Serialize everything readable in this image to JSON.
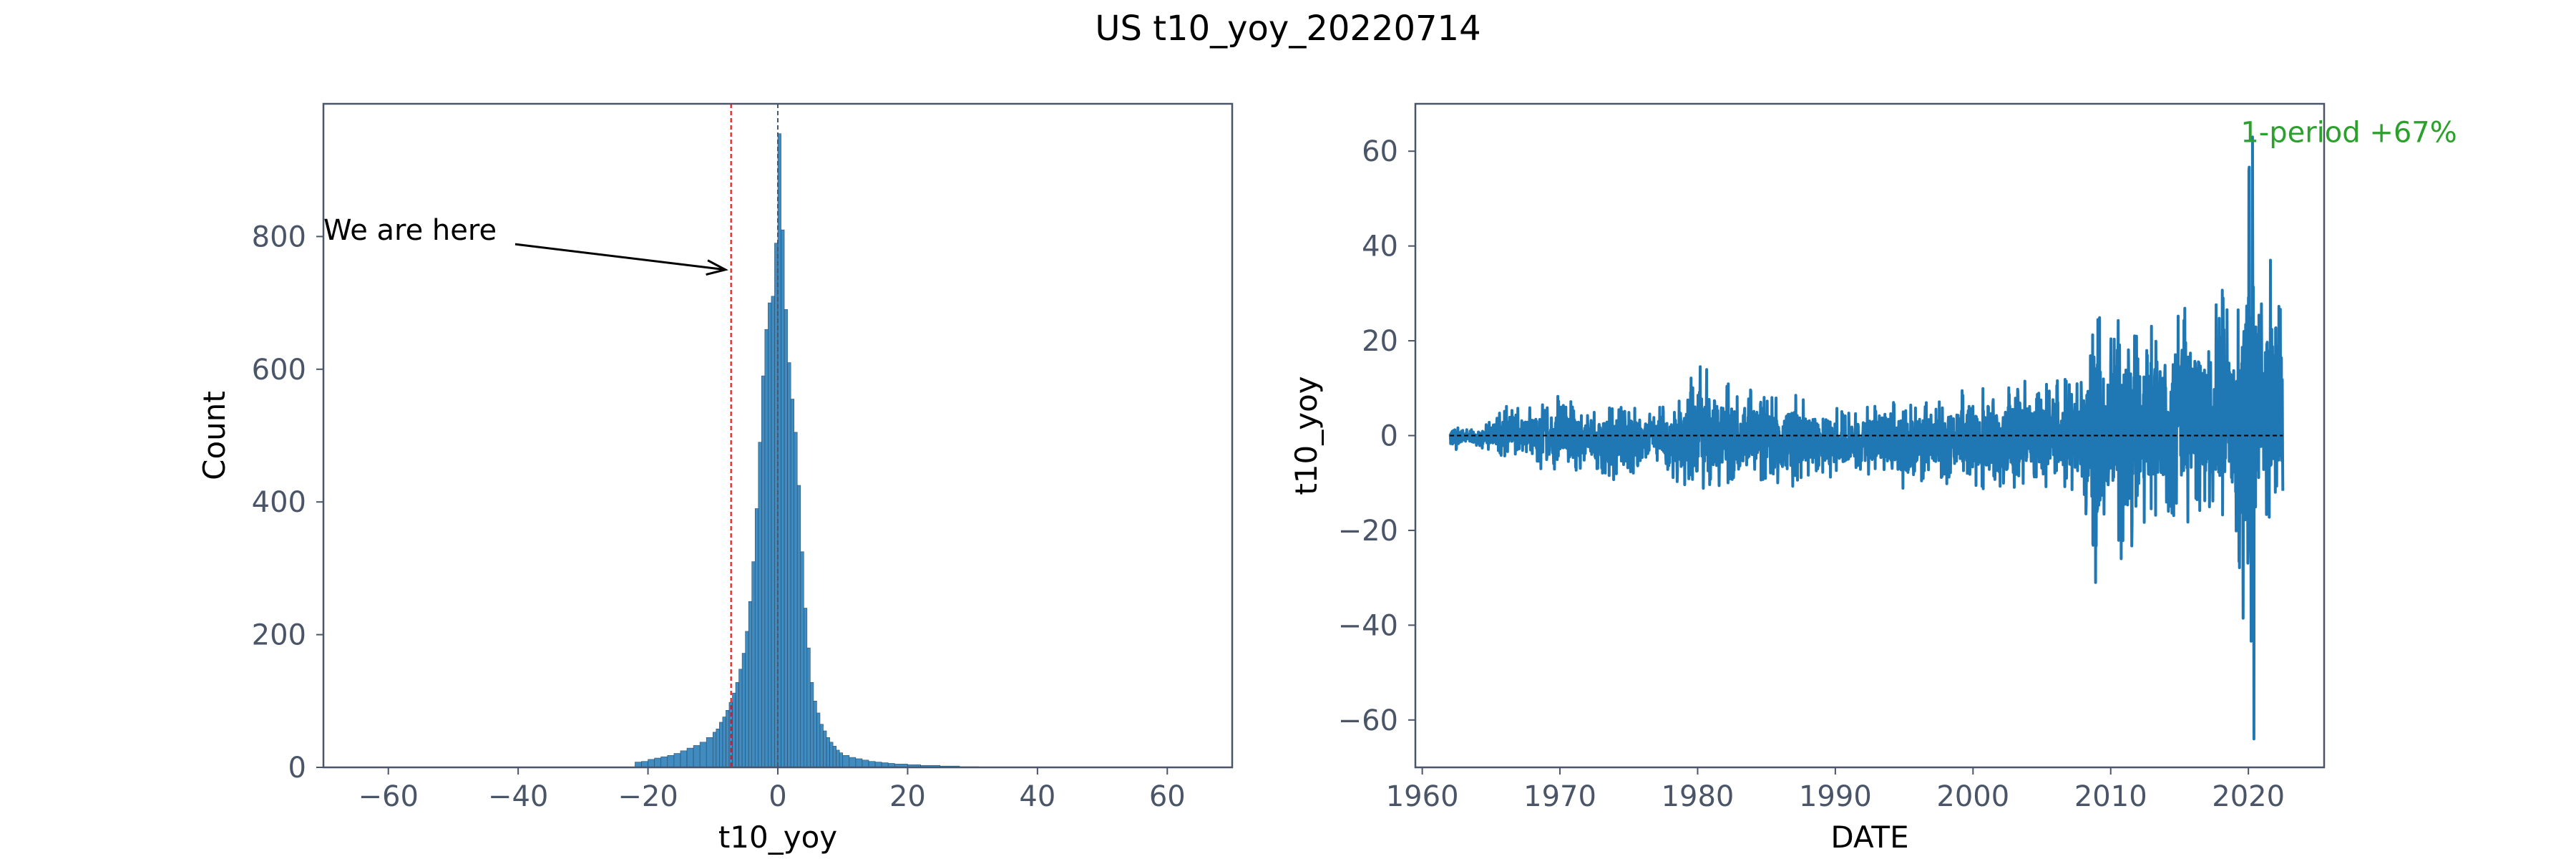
{
  "figure": {
    "suptitle": "US t10_yoy_20220714"
  },
  "chart_data": [
    {
      "type": "bar",
      "subtype": "histogram",
      "xlabel": "t10_yoy",
      "ylabel": "Count",
      "xlim": [
        -70,
        70
      ],
      "ylim": [
        0,
        1000
      ],
      "xticks": [
        -60,
        -40,
        -20,
        0,
        20,
        40,
        60
      ],
      "yticks": [
        0,
        200,
        400,
        600,
        800
      ],
      "bins": [
        -22,
        -21,
        -20,
        -19,
        -18,
        -17,
        -16,
        -15,
        -14,
        -13,
        -12,
        -11,
        -10,
        -9.5,
        -9,
        -8.5,
        -8,
        -7.5,
        -7,
        -6.5,
        -6,
        -5.5,
        -5,
        -4.5,
        -4,
        -3.5,
        -3,
        -2.5,
        -2,
        -1.5,
        -1,
        -0.5,
        0,
        0.5,
        1,
        1.5,
        2,
        2.5,
        3,
        3.5,
        4,
        4.5,
        5,
        5.5,
        6,
        6.5,
        7,
        7.5,
        8,
        8.5,
        9,
        9.5,
        10,
        11,
        12,
        13,
        14,
        15,
        16,
        17,
        18,
        20,
        22,
        25,
        28,
        31
      ],
      "counts": [
        8,
        9,
        12,
        14,
        16,
        18,
        21,
        25,
        29,
        33,
        38,
        45,
        53,
        58,
        68,
        76,
        86,
        98,
        112,
        128,
        148,
        172,
        205,
        250,
        310,
        390,
        490,
        590,
        660,
        700,
        710,
        790,
        955,
        810,
        690,
        610,
        555,
        505,
        425,
        325,
        240,
        180,
        128,
        100,
        82,
        65,
        55,
        45,
        38,
        32,
        26,
        22,
        18,
        15,
        13,
        11,
        9,
        8,
        7,
        6,
        5,
        4,
        3,
        2,
        1,
        0
      ],
      "vlines": [
        {
          "x": -7.2,
          "color": "#ff0000",
          "style": "dashed"
        },
        {
          "x": 0.0,
          "color": "#4a5568",
          "style": "dashed"
        }
      ],
      "annotation": {
        "text": "We are here",
        "text_xy": [
          -70,
          810
        ],
        "arrow_to": [
          -7.2,
          750
        ]
      },
      "color": "#1f77b4"
    },
    {
      "type": "line",
      "xlabel": "DATE",
      "ylabel": "t10_yoy",
      "xlim": [
        1959.5,
        2025.5
      ],
      "ylim": [
        -70,
        70
      ],
      "xticks": [
        1960,
        1970,
        1980,
        1990,
        2000,
        2010,
        2020
      ],
      "yticks": [
        -60,
        -40,
        -20,
        0,
        20,
        40,
        60
      ],
      "envelope": {
        "x": [
          1962.0,
          1963.0,
          1964.0,
          1965.0,
          1966.0,
          1967.0,
          1968.0,
          1969.0,
          1970.0,
          1971.0,
          1972.0,
          1973.0,
          1974.0,
          1975.0,
          1976.0,
          1977.0,
          1978.0,
          1979.0,
          1980.0,
          1981.0,
          1982.0,
          1983.0,
          1984.0,
          1985.0,
          1986.0,
          1987.0,
          1988.0,
          1989.0,
          1990.0,
          1991.0,
          1992.0,
          1993.0,
          1994.0,
          1995.0,
          1996.0,
          1997.0,
          1998.0,
          1999.0,
          2000.0,
          2001.0,
          2002.0,
          2003.0,
          2004.0,
          2005.0,
          2006.0,
          2007.0,
          2008.0,
          2009.0,
          2010.0,
          2011.0,
          2012.0,
          2013.0,
          2014.0,
          2015.0,
          2016.0,
          2017.0,
          2018.0,
          2019.0,
          2020.0,
          2021.0,
          2022.0,
          2022.5
        ],
        "high": [
          3,
          2,
          2,
          3,
          7,
          6,
          6,
          8,
          9,
          7,
          5,
          6,
          8,
          7,
          5,
          6,
          7,
          8,
          17,
          14,
          12,
          9,
          10,
          9,
          8,
          10,
          7,
          8,
          6,
          5,
          6,
          8,
          10,
          7,
          8,
          7,
          8,
          10,
          12,
          10,
          9,
          14,
          11,
          10,
          13,
          12,
          14,
          30,
          22,
          28,
          22,
          25,
          27,
          30,
          28,
          22,
          34,
          20,
          63,
          30,
          37,
          30
        ],
        "low": [
          -4,
          -2,
          -3,
          -3,
          -5,
          -4,
          -6,
          -8,
          -7,
          -9,
          -6,
          -9,
          -10,
          -9,
          -7,
          -6,
          -9,
          -11,
          -15,
          -14,
          -10,
          -11,
          -9,
          -10,
          -12,
          -11,
          -9,
          -8,
          -10,
          -8,
          -8,
          -9,
          -11,
          -13,
          -10,
          -9,
          -12,
          -10,
          -11,
          -12,
          -13,
          -12,
          -10,
          -11,
          -11,
          -13,
          -14,
          -31,
          -18,
          -29,
          -20,
          -18,
          -19,
          -20,
          -18,
          -16,
          -21,
          -19,
          -64,
          -22,
          -17,
          -17
        ]
      },
      "spikes": [
        {
          "x": 2020.3,
          "y": 63
        },
        {
          "x": 2020.4,
          "y": -64
        },
        {
          "x": 2008.9,
          "y": -31
        },
        {
          "x": 2021.6,
          "y": 37
        }
      ],
      "hline": {
        "y": 0,
        "color": "#000000",
        "style": "dashed"
      },
      "annotation": {
        "text": "1-period +67%",
        "color": "#2ca02c",
        "at": [
          2019.5,
          64
        ]
      },
      "color": "#1f77b4"
    }
  ]
}
